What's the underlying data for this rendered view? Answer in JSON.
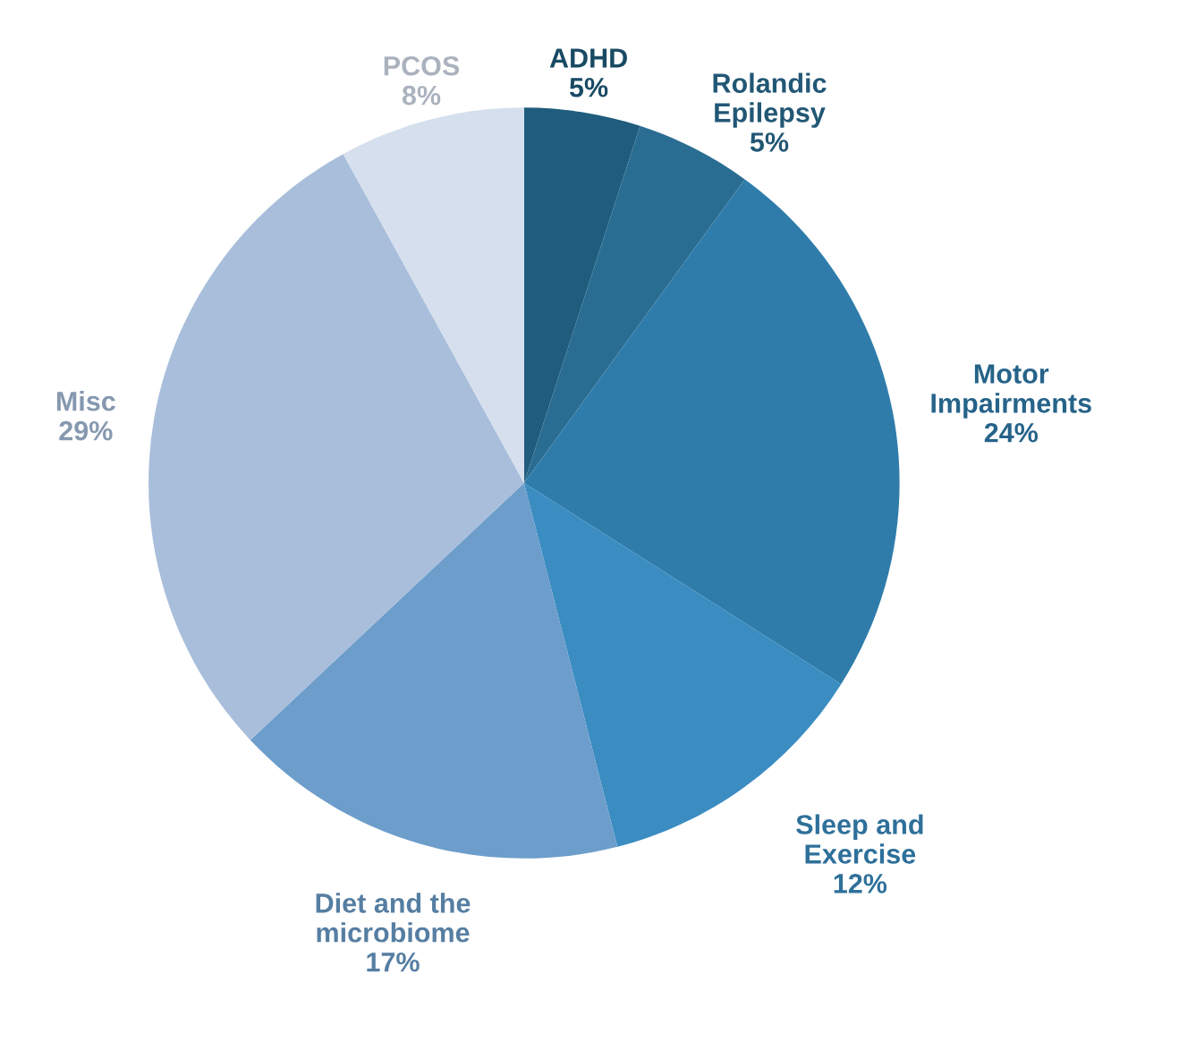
{
  "chart_data": {
    "type": "pie",
    "categories": [
      "ADHD",
      "Rolandic\nEpilepsy",
      "Motor\nImpairments",
      "Sleep and\nExercise",
      "Diet and the\nmicrobiome",
      "Misc",
      "PCOS"
    ],
    "values": [
      5,
      5,
      24,
      12,
      17,
      29,
      8
    ],
    "colors": [
      "#1f5c7d",
      "#2a6d92",
      "#2f7cab",
      "#3a8cc1",
      "#6c9dcb",
      "#a8bedb",
      "#d5dfed"
    ],
    "value_labels": [
      "5%",
      "5%",
      "24%",
      "12%",
      "17%",
      "29%",
      "8%"
    ]
  }
}
